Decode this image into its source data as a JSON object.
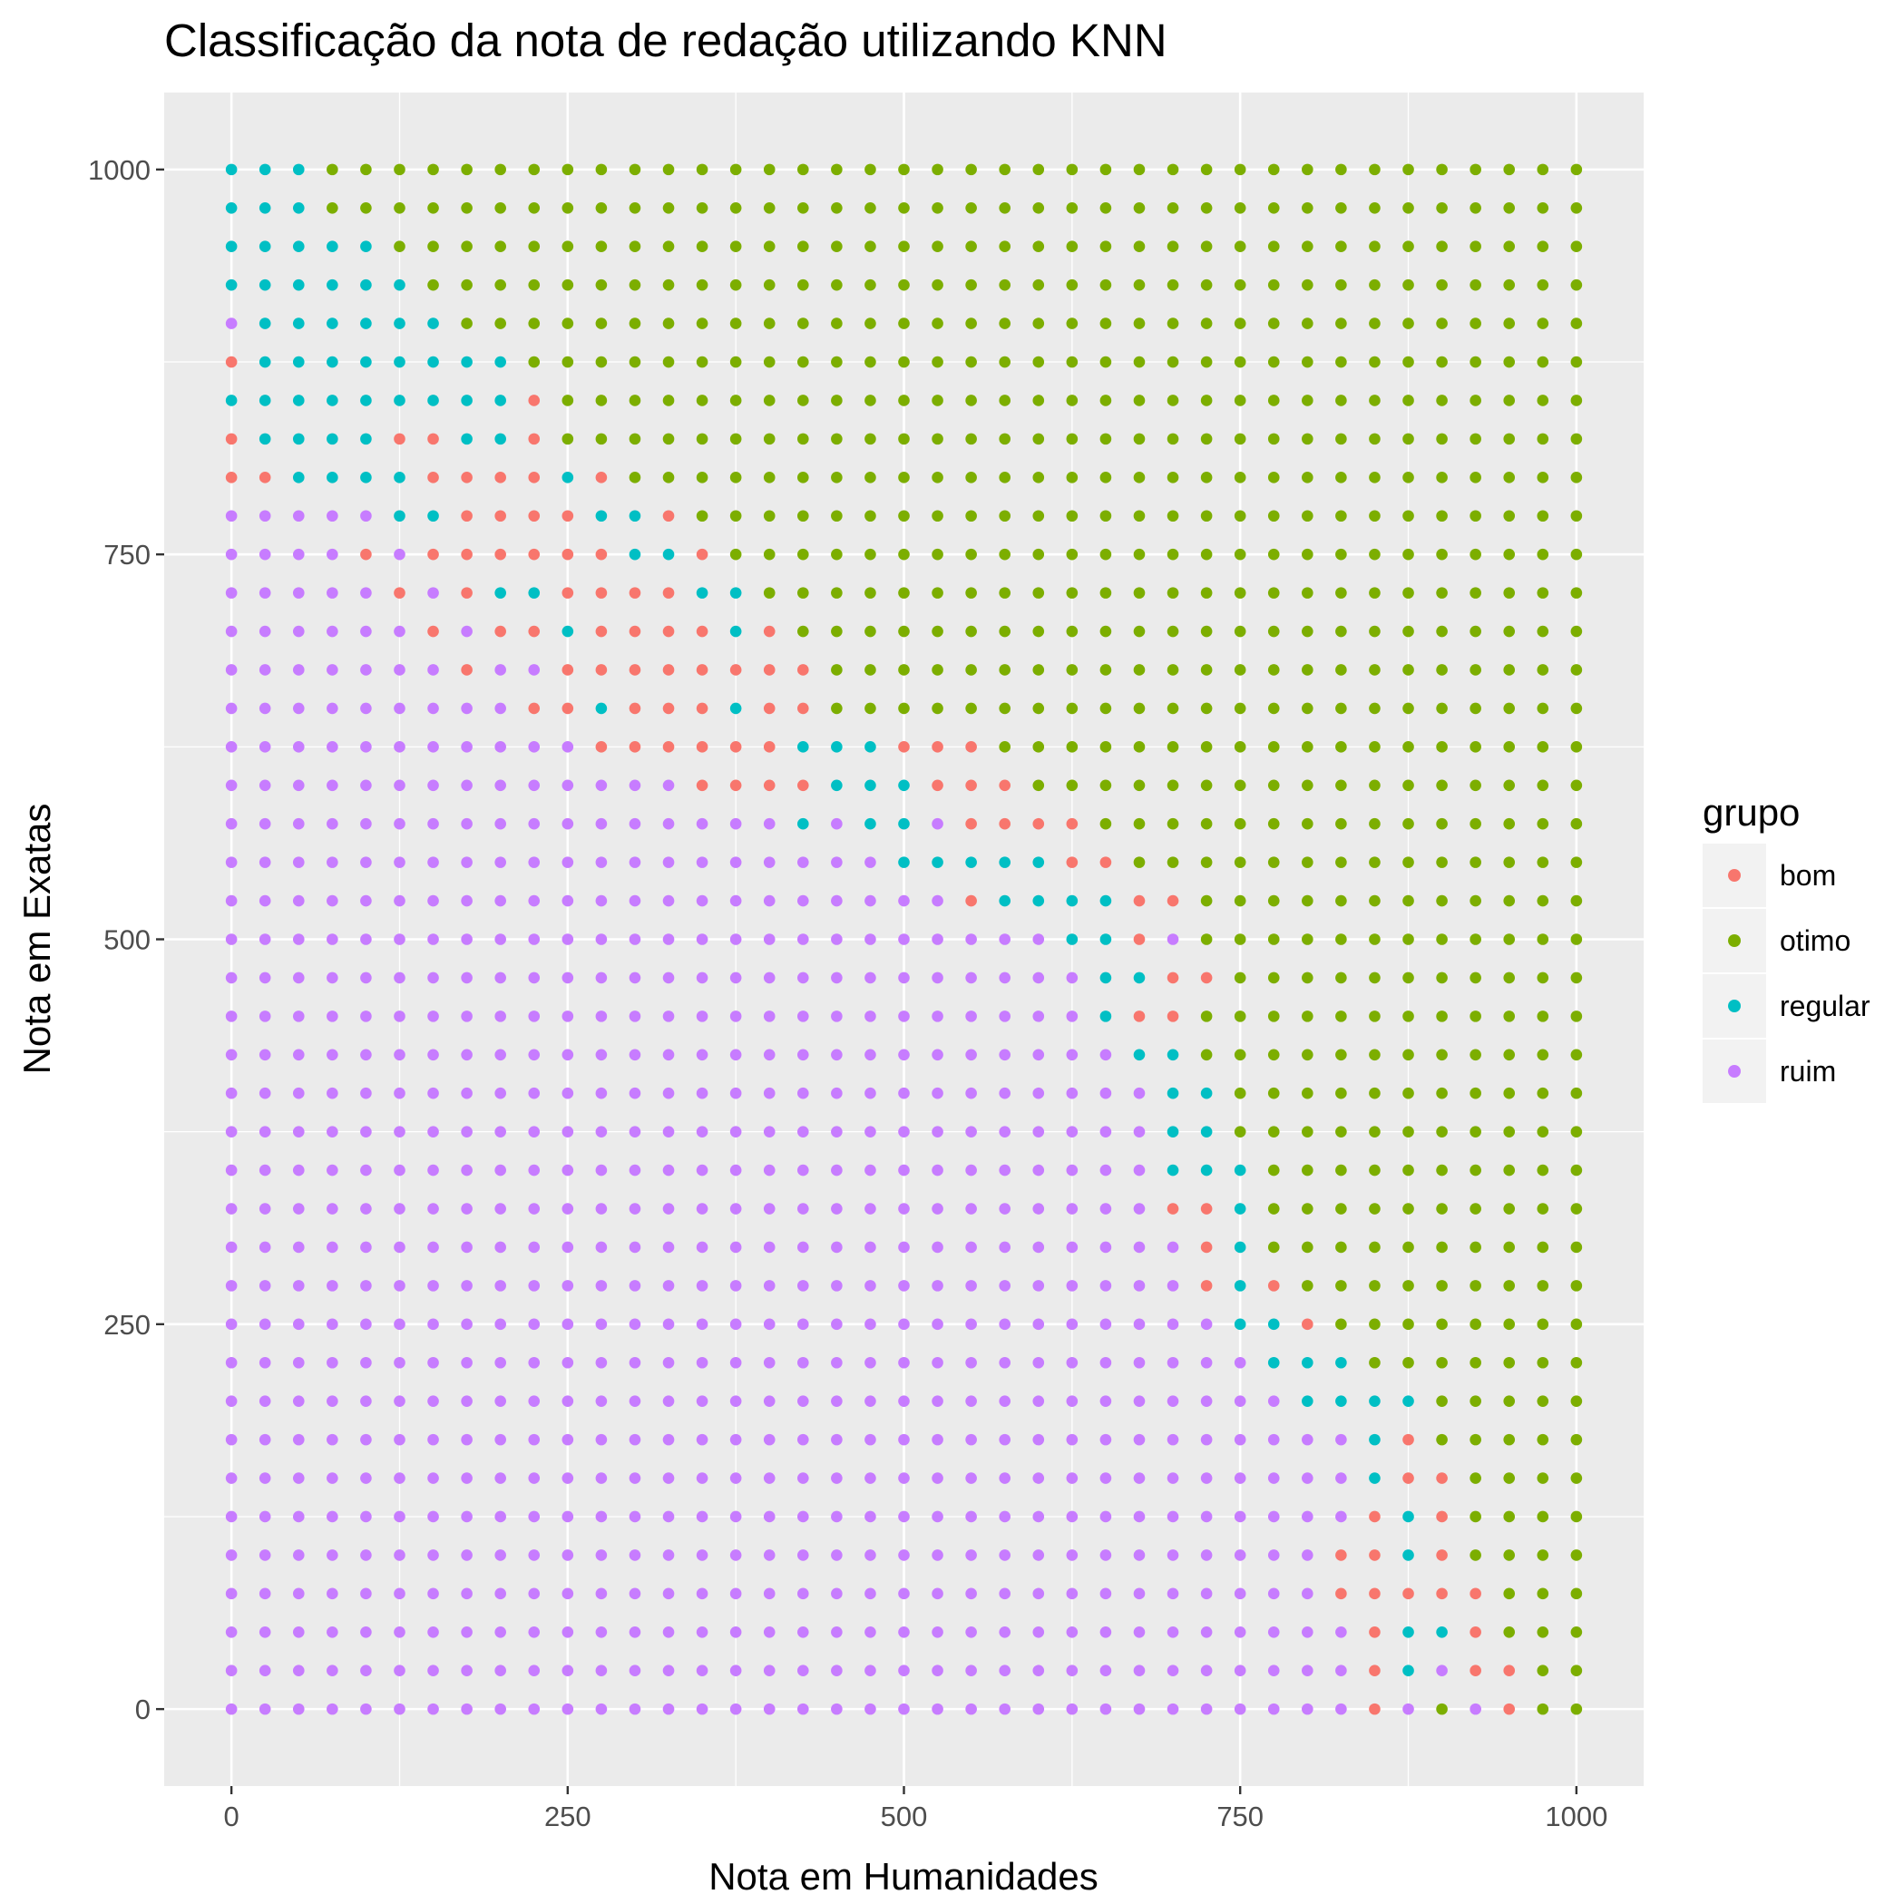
{
  "chart_data": {
    "type": "scatter",
    "title": "Classificação da nota de redação utilizando KNN",
    "xlabel": "Nota em Humanidades",
    "ylabel": "Nota em Exatas",
    "xlim": [
      -50,
      1050
    ],
    "ylim": [
      -50,
      1050
    ],
    "x_ticks": [
      0,
      250,
      500,
      750,
      1000
    ],
    "y_ticks": [
      0,
      250,
      500,
      750,
      1000
    ],
    "x_tick_labels": [
      "0",
      "250",
      "500",
      "750",
      "1000"
    ],
    "y_tick_labels": [
      "0",
      "250",
      "500",
      "750",
      "1000"
    ],
    "grid": true,
    "grid_step": 25,
    "x_values": [
      0,
      25,
      50,
      75,
      100,
      125,
      150,
      175,
      200,
      225,
      250,
      275,
      300,
      325,
      350,
      375,
      400,
      425,
      450,
      475,
      500,
      525,
      550,
      575,
      600,
      625,
      650,
      675,
      700,
      725,
      750,
      775,
      800,
      825,
      850,
      875,
      900,
      925,
      950,
      975,
      1000
    ],
    "y_values": [
      1000,
      975,
      950,
      925,
      900,
      875,
      850,
      825,
      800,
      775,
      750,
      725,
      700,
      675,
      650,
      625,
      600,
      575,
      550,
      525,
      500,
      475,
      450,
      425,
      400,
      375,
      350,
      325,
      300,
      275,
      250,
      225,
      200,
      175,
      150,
      125,
      100,
      75,
      50,
      25,
      0
    ],
    "legend": {
      "title": "grupo",
      "position": "right",
      "items": [
        {
          "code": "b",
          "label": "bom",
          "color": "#F8766D"
        },
        {
          "code": "o",
          "label": "otimo",
          "color": "#7CAE00"
        },
        {
          "code": "g",
          "label": "regular",
          "color": "#00BFC4"
        },
        {
          "code": "r",
          "label": "ruim",
          "color": "#C77CFF"
        }
      ]
    },
    "grid_classes": [
      "ggg",
      "ggg",
      "ggggg",
      "gggggg",
      "rgggggg",
      "bgggggggg",
      "gggggggggb",
      "bggggbbggb",
      "bbggggbbbbgb",
      "rrrrrggbbbbggb",
      "rrrrbrbbbbbbggb",
      "rrrrrbrbggbbbbgg",
      "rrrrrrbrbbgbbbbgb",
      "rrrrrrrbrrbbbbbbbb",
      "rrrrrrrrrbbgbbbgbb",
      "rrrrrrrrrrrbbbbbbgggbbb",
      "rrrrrrrrrrrrrrbbbbgggbbb",
      "rrrrrrrrrrrrrrrrrgrggrbbbb",
      "rrrrrrrrrrrrrrrrrrrrgggggbb",
      "rrrrrrrrrrrrrrrrrrrrrrbggggbb",
      "rrrrrrrrrrrrrrrrrrrrrrrrrggbr",
      "rrrrrrrrrrrrrrrrrrrrrrrrrrggbb",
      "rrrrrrrrrrrrrrrrrrrrrrrrrrgbb",
      "rrrrrrrrrrrrrrrrrrrrrrrrrrrgg",
      "rrrrrrrrrrrrrrrrrrrrrrrrrrrrgg",
      "rrrrrrrrrrrrrrrrrrrrrrrrrrrrgg",
      "rrrrrrrrrrrrrrrrrrrrrrrrrrrrggg",
      "rrrrrrrrrrrrrrrrrrrrrrrrrrrrbbg",
      "rrrrrrrrrrrrrrrrrrrrrrrrrrrrrbg",
      "rrrrrrrrrrrrrrrrrrrrrrrrrrrrrbgb",
      "rrrrrrrrrrrrrrrrrrrrrrrrrrrrrrggb",
      "rrrrrrrrrrrrrrrrrrrrrrrrrrrrrrrggg",
      "rrrrrrrrrrrrrrrrrrrrrrrrrrrrrrrrgggg",
      "rrrrrrrrrrrrrrrrrrrrrrrrrrrrrrrrrrgb",
      "rrrrrrrrrrrrrrrrrrrrrrrrrrrrrrrrrrgbb",
      "rrrrrrrrrrrrrrrrrrrrrrrrrrrrrrrrrrbgb",
      "rrrrrrrrrrrrrrrrrrrrrrrrrrrrrrrrrbbgb",
      "rrrrrrrrrrrrrrrrrrrrrrrrrrrrrrrrrbbbbb",
      "rrrrrrrrrrrrrrrrrrrrrrrrrrrrrrrrrrbggb",
      "rrrrrrrrrrrrrrrrrrrrrrrrrrrrrrrrrrbgrbb",
      "rrrrrrrrrrrrrrrrrrrrrrrrrrrrrrrrrrbrorb"
    ],
    "default_class": "o"
  }
}
